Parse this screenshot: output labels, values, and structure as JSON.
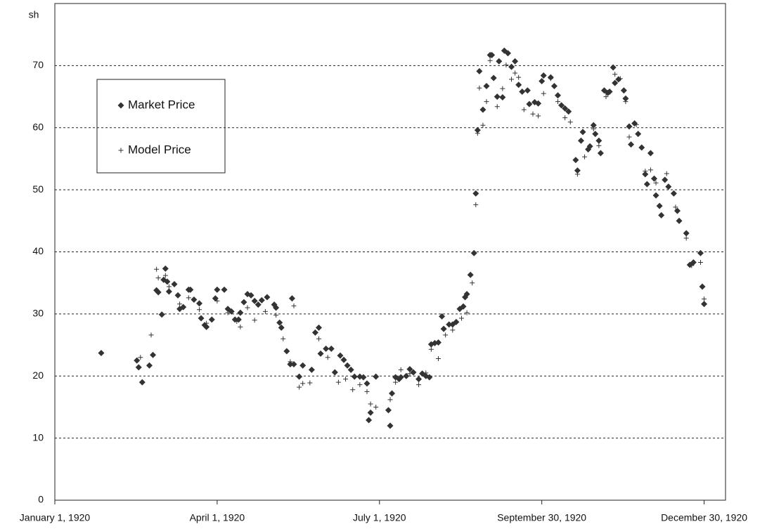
{
  "chart_data": {
    "type": "scatter",
    "y_label": "sh",
    "xlim": [
      "1920-01-01",
      "1921-01-11"
    ],
    "xticks": [
      {
        "value": "1920-01-01",
        "label": "January 1, 1920"
      },
      {
        "value": "1920-04-01",
        "label": "April 1, 1920"
      },
      {
        "value": "1920-07-01",
        "label": "July 1, 1920"
      },
      {
        "value": "1920-09-30",
        "label": "September 30, 1920"
      },
      {
        "value": "1920-12-30",
        "label": "December 30, 1920"
      }
    ],
    "ylim": [
      0,
      80
    ],
    "yticks": [
      0,
      10,
      20,
      30,
      40,
      50,
      60,
      70
    ],
    "grid": true,
    "legend": "upper left",
    "series": [
      {
        "name": "Market Price",
        "marker": "diamond",
        "color": "#333333",
        "x": [
          "1920-01-27",
          "1920-02-16",
          "1920-02-17",
          "1920-02-19",
          "1920-02-23",
          "1920-02-25",
          "1920-02-27",
          "1920-02-28",
          "1920-03-01",
          "1920-03-02",
          "1920-03-03",
          "1920-03-04",
          "1920-03-05",
          "1920-03-08",
          "1920-03-10",
          "1920-03-11",
          "1920-03-13",
          "1920-03-16",
          "1920-03-17",
          "1920-03-19",
          "1920-03-22",
          "1920-03-23",
          "1920-03-25",
          "1920-03-26",
          "1920-03-29",
          "1920-03-31",
          "1920-04-01",
          "1920-04-05",
          "1920-04-07",
          "1920-04-09",
          "1920-04-11",
          "1920-04-13",
          "1920-04-14",
          "1920-04-16",
          "1920-04-18",
          "1920-04-20",
          "1920-04-22",
          "1920-04-24",
          "1920-04-26",
          "1920-04-29",
          "1920-05-03",
          "1920-05-04",
          "1920-05-06",
          "1920-05-07",
          "1920-05-10",
          "1920-05-12",
          "1920-05-14",
          "1920-05-13",
          "1920-05-17",
          "1920-05-19",
          "1920-05-24",
          "1920-05-26",
          "1920-05-28",
          "1920-05-29",
          "1920-06-01",
          "1920-06-04",
          "1920-06-06",
          "1920-06-09",
          "1920-06-11",
          "1920-06-13",
          "1920-06-15",
          "1920-06-17",
          "1920-06-20",
          "1920-06-22",
          "1920-06-24",
          "1920-06-25",
          "1920-06-26",
          "1920-06-29",
          "1920-07-06",
          "1920-07-07",
          "1920-07-08",
          "1920-07-10",
          "1920-07-12",
          "1920-07-13",
          "1920-07-16",
          "1920-07-18",
          "1920-07-20",
          "1920-07-23",
          "1920-07-25",
          "1920-07-27",
          "1920-07-29",
          "1920-07-30",
          "1920-08-01",
          "1920-08-03",
          "1920-08-05",
          "1920-08-06",
          "1920-08-09",
          "1920-08-11",
          "1920-08-13",
          "1920-08-15",
          "1920-08-17",
          "1920-08-18",
          "1920-08-19",
          "1920-08-21",
          "1920-08-23",
          "1920-08-24",
          "1920-08-25",
          "1920-08-26",
          "1920-08-28",
          "1920-08-30",
          "1920-09-01",
          "1920-09-02",
          "1920-09-03",
          "1920-09-05",
          "1920-09-06",
          "1920-09-08",
          "1920-09-09",
          "1920-09-11",
          "1920-09-13",
          "1920-09-15",
          "1920-09-17",
          "1920-09-19",
          "1920-09-22",
          "1920-09-23",
          "1920-09-26",
          "1920-09-28",
          "1920-09-30",
          "1920-10-01",
          "1920-10-05",
          "1920-10-07",
          "1920-10-09",
          "1920-10-11",
          "1920-10-13",
          "1920-10-15",
          "1920-10-19",
          "1920-10-20",
          "1920-10-22",
          "1920-10-23",
          "1920-10-26",
          "1920-10-27",
          "1920-10-29",
          "1920-10-30",
          "1920-11-01",
          "1920-11-02",
          "1920-11-04",
          "1920-11-06",
          "1920-11-07",
          "1920-11-09",
          "1920-11-10",
          "1920-11-12",
          "1920-11-15",
          "1920-11-16",
          "1920-11-18",
          "1920-11-19",
          "1920-11-21",
          "1920-11-23",
          "1920-11-25",
          "1920-11-27",
          "1920-11-28",
          "1920-11-30",
          "1920-12-02",
          "1920-12-03",
          "1920-12-05",
          "1920-12-06",
          "1920-12-08",
          "1920-12-10",
          "1920-12-13",
          "1920-12-15",
          "1920-12-16",
          "1920-12-20",
          "1920-12-22",
          "1920-12-24",
          "1920-12-28",
          "1920-12-29",
          "1920-12-30"
        ],
        "values": [
          23.7,
          22.5,
          21.4,
          19.0,
          21.7,
          23.4,
          33.8,
          33.5,
          29.9,
          35.5,
          37.3,
          35.2,
          33.6,
          34.8,
          33.0,
          30.8,
          31.1,
          33.9,
          33.9,
          32.3,
          31.7,
          29.3,
          28.2,
          27.9,
          29.1,
          32.5,
          33.9,
          33.9,
          30.8,
          30.4,
          29.1,
          29.1,
          30.2,
          31.9,
          33.2,
          33.0,
          32.1,
          31.5,
          32.2,
          32.7,
          31.5,
          31.0,
          28.6,
          27.8,
          24.0,
          21.9,
          21.9,
          32.5,
          19.9,
          21.7,
          21.0,
          27.0,
          27.8,
          23.6,
          24.4,
          24.4,
          20.6,
          23.3,
          22.6,
          21.7,
          21.0,
          19.9,
          19.9,
          19.8,
          18.8,
          12.9,
          14.1,
          19.9,
          14.5,
          12.0,
          17.2,
          19.8,
          19.5,
          19.8,
          20.0,
          21.1,
          20.6,
          19.5,
          20.4,
          20.0,
          19.8,
          25.1,
          25.3,
          25.4,
          29.6,
          27.6,
          28.3,
          28.3,
          28.7,
          30.8,
          31.2,
          32.7,
          33.2,
          36.3,
          39.8,
          49.4,
          59.6,
          69.1,
          62.9,
          66.7,
          71.7,
          71.7,
          68.0,
          65.0,
          70.7,
          64.9,
          72.4,
          72.0,
          69.8,
          70.7,
          66.9,
          65.8,
          66.0,
          63.8,
          64.1,
          63.9,
          67.5,
          68.4,
          68.1,
          66.7,
          65.2,
          63.6,
          63.1,
          62.6,
          54.8,
          53.1,
          57.9,
          59.3,
          56.5,
          57.0,
          60.4,
          59.0,
          57.9,
          55.9,
          66.0,
          65.6,
          65.8,
          69.7,
          67.2,
          67.8,
          66.0,
          64.7,
          60.2,
          57.3,
          60.7,
          59.0,
          56.8,
          52.5,
          50.9,
          55.9,
          51.8,
          49.1,
          47.4,
          45.9,
          51.6,
          50.5,
          49.4,
          46.6,
          45.0,
          43.0,
          37.9,
          38.3,
          39.8,
          34.4,
          31.6
        ]
      },
      {
        "name": "Model Price",
        "marker": "plus",
        "color": "#333333",
        "x": [
          "1920-02-18",
          "1920-02-24",
          "1920-02-27",
          "1920-02-28",
          "1920-03-03",
          "1920-03-05",
          "1920-03-11",
          "1920-03-16",
          "1920-03-22",
          "1920-03-26",
          "1920-04-01",
          "1920-04-07",
          "1920-04-12",
          "1920-04-14",
          "1920-04-18",
          "1920-04-22",
          "1920-04-28",
          "1920-05-04",
          "1920-05-08",
          "1920-05-12",
          "1920-05-14",
          "1920-05-17",
          "1920-05-19",
          "1920-05-23",
          "1920-05-28",
          "1920-06-02",
          "1920-06-08",
          "1920-06-12",
          "1920-06-16",
          "1920-06-20",
          "1920-06-24",
          "1920-06-26",
          "1920-06-29",
          "1920-07-07",
          "1920-07-10",
          "1920-07-13",
          "1920-07-18",
          "1920-07-23",
          "1920-07-27",
          "1920-07-30",
          "1920-08-03",
          "1920-08-07",
          "1920-08-11",
          "1920-08-16",
          "1920-08-19",
          "1920-08-22",
          "1920-08-24",
          "1920-08-25",
          "1920-08-26",
          "1920-08-28",
          "1920-08-30",
          "1920-09-01",
          "1920-09-05",
          "1920-09-08",
          "1920-09-10",
          "1920-09-13",
          "1920-09-15",
          "1920-09-17",
          "1920-09-20",
          "1920-09-25",
          "1920-09-28",
          "1920-10-01",
          "1920-10-05",
          "1920-10-09",
          "1920-10-13",
          "1920-10-16",
          "1920-10-20",
          "1920-10-24",
          "1920-10-29",
          "1920-11-01",
          "1920-11-05",
          "1920-11-10",
          "1920-11-13",
          "1920-11-16",
          "1920-11-18",
          "1920-11-22",
          "1920-11-27",
          "1920-11-30",
          "1920-12-03",
          "1920-12-09",
          "1920-12-14",
          "1920-12-20",
          "1920-12-23",
          "1920-12-28",
          "1920-12-30"
        ],
        "values": [
          23.0,
          26.6,
          37.2,
          35.8,
          36.2,
          34.4,
          31.6,
          32.6,
          30.7,
          28.5,
          32.1,
          30.2,
          28.8,
          27.9,
          31.0,
          29.0,
          30.4,
          29.8,
          26.0,
          22.3,
          31.3,
          18.2,
          18.8,
          18.9,
          26.0,
          23.0,
          19.0,
          19.5,
          17.8,
          18.6,
          17.5,
          15.5,
          15.0,
          16.2,
          19.0,
          21.0,
          20.4,
          18.6,
          20.5,
          24.3,
          22.8,
          26.6,
          27.4,
          29.3,
          30.2,
          35.0,
          47.6,
          59.1,
          66.4,
          60.4,
          64.2,
          70.8,
          63.4,
          66.3,
          70.1,
          67.8,
          68.8,
          68.1,
          62.9,
          62.2,
          61.9,
          65.5,
          67.9,
          64.2,
          61.6,
          60.9,
          52.5,
          55.3,
          59.8,
          57.1,
          65.0,
          68.6,
          67.9,
          64.2,
          58.5,
          60.5,
          53.0,
          53.2,
          51.1,
          52.6,
          47.2,
          42.2,
          37.8,
          38.3,
          32.4
        ]
      }
    ]
  }
}
